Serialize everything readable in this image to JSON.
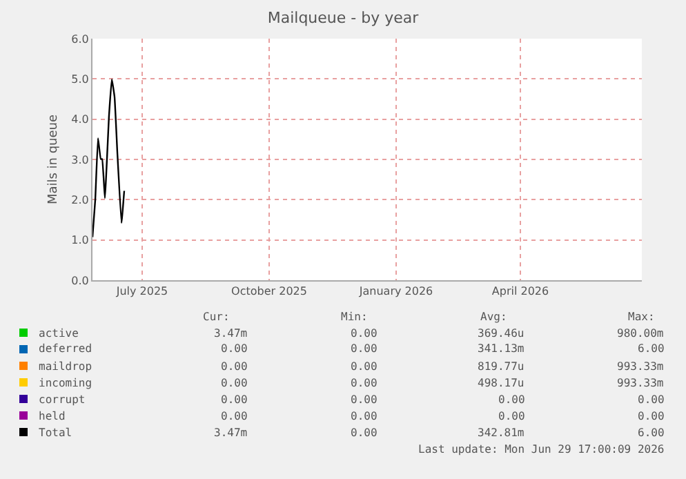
{
  "chart_data": {
    "type": "line",
    "title": "Mailqueue - by year",
    "ylabel": "Mails in queue",
    "x": [
      "2025-05-26",
      "2025-05-28",
      "2025-05-30",
      "2025-06-01",
      "2025-06-02",
      "2025-06-04",
      "2025-06-07",
      "2025-06-09",
      "2025-06-11",
      "2025-06-13",
      "2025-06-16",
      "2025-06-18"
    ],
    "series": [
      {
        "name": "active",
        "color": "#00cc00",
        "values": [
          null,
          null,
          null,
          null,
          null,
          null,
          null,
          null,
          null,
          null,
          null,
          null
        ]
      },
      {
        "name": "deferred",
        "color": "#0066b3",
        "values": [
          null,
          null,
          null,
          null,
          null,
          null,
          null,
          null,
          null,
          null,
          null,
          null
        ]
      },
      {
        "name": "maildrop",
        "color": "#ff8000",
        "values": [
          null,
          null,
          null,
          null,
          null,
          null,
          null,
          null,
          null,
          null,
          null,
          null
        ]
      },
      {
        "name": "incoming",
        "color": "#ffcc00",
        "values": [
          null,
          null,
          null,
          null,
          null,
          null,
          null,
          null,
          null,
          null,
          null,
          null
        ]
      },
      {
        "name": "corrupt",
        "color": "#330099",
        "values": [
          null,
          null,
          null,
          null,
          null,
          null,
          null,
          null,
          null,
          null,
          null,
          null
        ]
      },
      {
        "name": "held",
        "color": "#990099",
        "values": [
          null,
          null,
          null,
          null,
          null,
          null,
          null,
          null,
          null,
          null,
          null,
          null
        ]
      },
      {
        "name": "Total",
        "color": "#000000",
        "values": [
          1.07,
          1.99,
          3.53,
          3.01,
          3.01,
          2.04,
          4.1,
          4.99,
          4.55,
          3.18,
          1.42,
          2.22
        ]
      }
    ],
    "xlim": [
      "2025-05-26",
      "2026-06-28"
    ],
    "xticks": [
      {
        "value": "2025-07-01",
        "label": "July 2025"
      },
      {
        "value": "2025-10-01",
        "label": "October 2025"
      },
      {
        "value": "2026-01-01",
        "label": "January 2026"
      },
      {
        "value": "2026-04-01",
        "label": "April 2026"
      }
    ],
    "ylim": [
      0,
      6
    ],
    "yticks": [
      {
        "value": 0,
        "label": "0.0"
      },
      {
        "value": 1,
        "label": "1.0"
      },
      {
        "value": 2,
        "label": "2.0"
      },
      {
        "value": 3,
        "label": "3.0"
      },
      {
        "value": 4,
        "label": "4.0"
      },
      {
        "value": 5,
        "label": "5.0"
      },
      {
        "value": 6,
        "label": "6.0"
      }
    ],
    "grid": true,
    "legend": "bottom",
    "annotations": [
      "Cur:",
      "Min:",
      "Avg:",
      "Max:",
      "3.47m",
      "0.00",
      "369.46u",
      "980.00m",
      "0.00",
      "0.00",
      "341.13m",
      "6.00",
      "0.00",
      "0.00",
      "819.77u",
      "993.33m",
      "0.00",
      "0.00",
      "498.17u",
      "993.33m",
      "0.00",
      "0.00",
      "0.00",
      "0.00",
      "0.00",
      "0.00",
      "0.00",
      "0.00",
      "3.47m",
      "0.00",
      "342.81m",
      "6.00",
      "Last update: Mon Jun 29 17:00:09 2026"
    ]
  }
}
